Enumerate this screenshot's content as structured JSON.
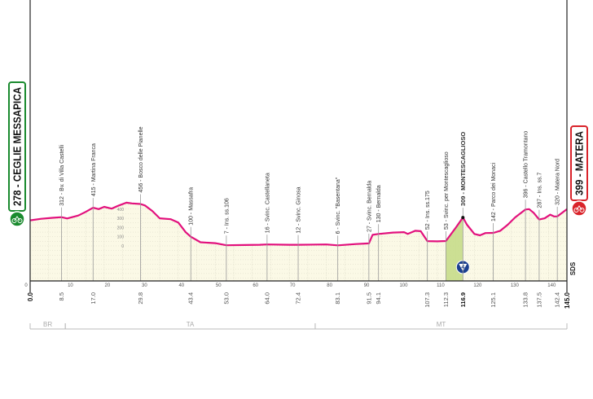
{
  "chart_data": {
    "type": "area",
    "title": "",
    "xlabel": "",
    "ylabel": "",
    "xlim": [
      0,
      145
    ],
    "x_ticks": [
      0,
      10,
      20,
      30,
      40,
      50,
      60,
      70,
      80,
      90,
      100,
      110,
      120,
      130,
      140
    ],
    "y_ticks": [
      0,
      100,
      200,
      300,
      400
    ],
    "grid": true,
    "colors": {
      "profile": "#e2117d",
      "fill": "#fbf9e6",
      "climb": "#c6dc8a",
      "start": "#1a8a2e",
      "finish": "#d9232a",
      "kom": "#1b3f8f"
    },
    "start": {
      "km_label": "0.0",
      "label": "278 - CEGLIE MESSAPICA",
      "icon": "cyclist-icon"
    },
    "finish": {
      "km_label": "145.0",
      "label": "399 - MATERA",
      "icon": "cyclist-icon"
    },
    "profile": [
      [
        0,
        278
      ],
      [
        3,
        295
      ],
      [
        6,
        305
      ],
      [
        8.5,
        312
      ],
      [
        10,
        298
      ],
      [
        13,
        330
      ],
      [
        15,
        370
      ],
      [
        17,
        415
      ],
      [
        18.5,
        400
      ],
      [
        20,
        425
      ],
      [
        22,
        405
      ],
      [
        24,
        440
      ],
      [
        26,
        470
      ],
      [
        27.5,
        462
      ],
      [
        29.8,
        456
      ],
      [
        31,
        440
      ],
      [
        33,
        380
      ],
      [
        35,
        300
      ],
      [
        38,
        290
      ],
      [
        40,
        255
      ],
      [
        42,
        150
      ],
      [
        43.4,
        100
      ],
      [
        46,
        40
      ],
      [
        50,
        30
      ],
      [
        53,
        7
      ],
      [
        58,
        10
      ],
      [
        62,
        12
      ],
      [
        64,
        16
      ],
      [
        70,
        12
      ],
      [
        72.4,
        12
      ],
      [
        80,
        16
      ],
      [
        83.1,
        6
      ],
      [
        88,
        20
      ],
      [
        91.5,
        27
      ],
      [
        92.5,
        120
      ],
      [
        94.1,
        130
      ],
      [
        98,
        145
      ],
      [
        101,
        150
      ],
      [
        102,
        130
      ],
      [
        104,
        165
      ],
      [
        105.5,
        160
      ],
      [
        107.3,
        52
      ],
      [
        110,
        50
      ],
      [
        112.3,
        53
      ],
      [
        115,
        200
      ],
      [
        116.9,
        309
      ],
      [
        118,
        230
      ],
      [
        120,
        130
      ],
      [
        121.5,
        115
      ],
      [
        123,
        140
      ],
      [
        125.1,
        142
      ],
      [
        127,
        165
      ],
      [
        129,
        230
      ],
      [
        131,
        310
      ],
      [
        133.8,
        396
      ],
      [
        134.8,
        400
      ],
      [
        136,
        360
      ],
      [
        137.5,
        287
      ],
      [
        139,
        300
      ],
      [
        140.5,
        340
      ],
      [
        141.5,
        320
      ],
      [
        142.4,
        320
      ],
      [
        144,
        370
      ],
      [
        145,
        399
      ]
    ],
    "climbs": [
      {
        "from": 112.3,
        "to": 116.9,
        "category": "4"
      }
    ],
    "waypoints": [
      {
        "km": 8.5,
        "km_label": "8.5",
        "label": "312 - Bv. di Villa Castelli",
        "bold": false
      },
      {
        "km": 17.0,
        "km_label": "17.0",
        "label": "415 - Martina Franca",
        "bold": false
      },
      {
        "km": 29.8,
        "km_label": "29.8",
        "label": "456 - Bosco delle Pianelle",
        "bold": false
      },
      {
        "km": 43.4,
        "km_label": "43.4",
        "label": "100 - Massafra",
        "bold": false
      },
      {
        "km": 53.0,
        "km_label": "53.0",
        "label": "7 - Ins. ss.106",
        "bold": false
      },
      {
        "km": 64.0,
        "km_label": "64.0",
        "label": "16 - Svinc. Castellaneta",
        "bold": false
      },
      {
        "km": 72.4,
        "km_label": "72.4",
        "label": "12 - Svinc. Ginosa",
        "bold": false
      },
      {
        "km": 83.1,
        "km_label": "83.1",
        "label": "6 - Svinc. \"Basentana\"",
        "bold": false
      },
      {
        "km": 91.5,
        "km_label": "91.5",
        "label": "27 - Svinc. Bernalda",
        "bold": false
      },
      {
        "km": 94.1,
        "km_label": "94.1",
        "label": "130 - Bernalda",
        "bold": false
      },
      {
        "km": 107.3,
        "km_label": "107.3",
        "label": "52 - Ins. ss.175",
        "bold": false
      },
      {
        "km": 112.3,
        "km_label": "112.3",
        "label": "53 - Svinc. per Montescaglioso",
        "bold": false
      },
      {
        "km": 116.9,
        "km_label": "116.9",
        "label": "309 - MONTESCAGLIOSO",
        "bold": true
      },
      {
        "km": 125.1,
        "km_label": "125.1",
        "label": "142 - Parco dei Monaci",
        "bold": false
      },
      {
        "km": 133.8,
        "km_label": "133.8",
        "label": "396 - Castello Tramontano",
        "bold": false
      },
      {
        "km": 137.5,
        "km_label": "137.5",
        "label": "287 - Ins. ss.7",
        "bold": false
      },
      {
        "km": 142.4,
        "km_label": "142.4",
        "label": "320 - Matera Nord",
        "bold": false
      }
    ],
    "provinces": [
      {
        "label": "BR",
        "from": 0,
        "to": 9.5
      },
      {
        "label": "TA",
        "from": 9.5,
        "to": 77
      },
      {
        "label": "MT",
        "from": 77,
        "to": 145
      }
    ],
    "sds_label": "SDS"
  }
}
